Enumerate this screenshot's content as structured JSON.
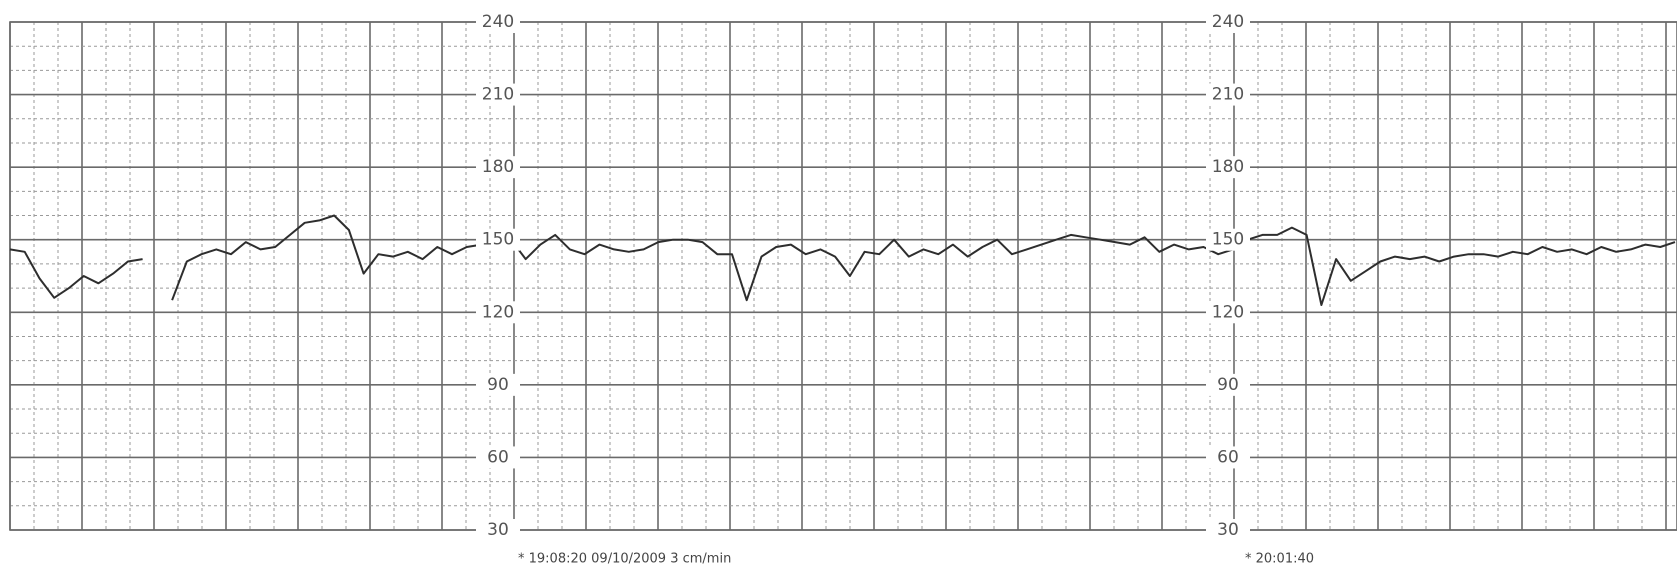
{
  "chart_data": {
    "type": "line",
    "values": [
      146,
      145,
      134,
      126,
      130,
      135,
      132,
      136,
      141,
      142,
      null,
      125,
      141,
      144,
      146,
      144,
      149,
      146,
      147,
      152,
      157,
      158,
      160,
      154,
      136,
      144,
      143,
      145,
      142,
      147,
      144,
      147,
      148,
      146,
      150,
      142,
      148,
      152,
      146,
      144,
      148,
      146,
      145,
      146,
      149,
      150,
      150,
      149,
      144,
      144,
      125,
      143,
      147,
      148,
      144,
      146,
      143,
      135,
      145,
      144,
      150,
      143,
      146,
      144,
      148,
      143,
      147,
      150,
      144,
      146,
      148,
      150,
      152,
      151,
      150,
      149,
      148,
      151,
      145,
      148,
      146,
      147,
      144,
      146,
      150,
      152,
      152,
      155,
      152,
      123,
      142,
      133,
      137,
      141,
      143,
      142,
      143,
      141,
      143,
      144,
      144,
      143,
      145,
      144,
      147,
      145,
      146,
      144,
      147,
      145,
      146,
      148,
      147,
      149
    ],
    "color": "#2e2e2e",
    "ylim": [
      30,
      240
    ],
    "yticks": [
      30,
      60,
      90,
      120,
      150,
      180,
      210,
      240
    ],
    "grid": true,
    "annotations": [
      "* 19:08:20  09/10/2009  3 cm/min",
      "* 20:01:40"
    ]
  }
}
